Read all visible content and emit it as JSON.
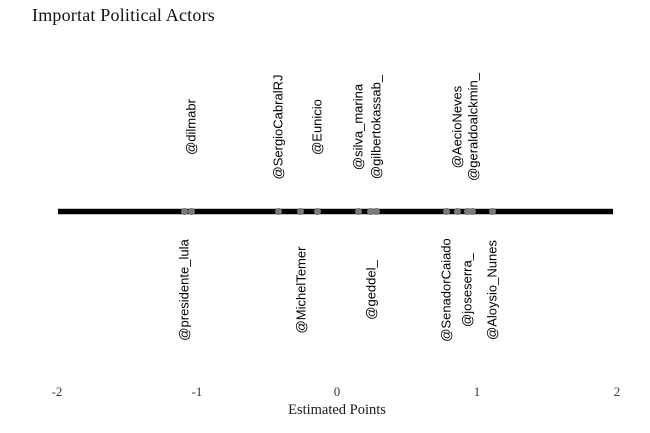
{
  "chart_data": {
    "type": "scatter",
    "title": "Importat Political Actors",
    "xlabel": "Estimated Points",
    "xlim": [
      -2,
      2
    ],
    "x_ticks": [
      -2,
      -1,
      0,
      1,
      2
    ],
    "grid": false,
    "legend": "none",
    "axis_line_color": "#000000",
    "point_color": "#7b7b7b",
    "points": [
      {
        "label": "@presidente_lula",
        "value": -1.09,
        "label_side": "below"
      },
      {
        "label": "@dilmabr",
        "value": -1.04,
        "label_side": "above"
      },
      {
        "label": "@SergioCabralRJ",
        "value": -0.42,
        "label_side": "above"
      },
      {
        "label": "@MichelTemer",
        "value": -0.26,
        "label_side": "below"
      },
      {
        "label": "@Eunicio",
        "value": -0.14,
        "label_side": "above"
      },
      {
        "label": "@silva_marina",
        "value": 0.15,
        "label_side": "above"
      },
      {
        "label": "@geddel_",
        "value": 0.24,
        "label_side": "below"
      },
      {
        "label": "@gilbertokassab_",
        "value": 0.28,
        "label_side": "above"
      },
      {
        "label": "@SenadorCaiado",
        "value": 0.78,
        "label_side": "below"
      },
      {
        "label": "@AecioNeves",
        "value": 0.86,
        "label_side": "above"
      },
      {
        "label": "@joseserra_",
        "value": 0.93,
        "label_side": "below"
      },
      {
        "label": "@geraldoalckmin_",
        "value": 0.97,
        "label_side": "above"
      },
      {
        "label": "@Aloysio_Nunes",
        "value": 1.11,
        "label_side": "below"
      }
    ]
  }
}
